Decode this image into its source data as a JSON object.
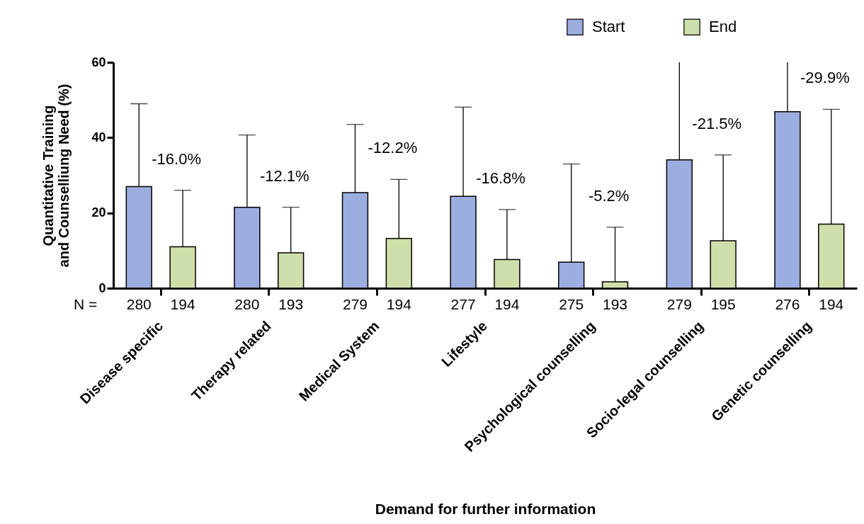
{
  "chart_data": {
    "type": "bar",
    "xlabel": "Demand for further information",
    "ylabel": "Quantitative Training\nand Counselliung Need (%)",
    "categories": [
      "Disease specific",
      "Therapy related",
      "Medical System",
      "Lifestyle",
      "Psychological counselling",
      "Socio-legal counselling",
      "Genetic counselling"
    ],
    "series": [
      {
        "name": "Start",
        "color": "#9caee0",
        "values": [
          27.0,
          21.5,
          25.4,
          24.4,
          6.9,
          34.1,
          46.9
        ],
        "errors": [
          [
            27.0,
            49.0
          ],
          [
            21.5,
            40.7
          ],
          [
            25.4,
            43.5
          ],
          [
            24.4,
            48.1
          ],
          [
            6.9,
            33.0
          ],
          [
            34.1,
            60
          ],
          [
            46.9,
            60
          ]
        ]
      },
      {
        "name": "End",
        "color": "#cfdfab",
        "values": [
          11.0,
          9.4,
          13.2,
          7.6,
          1.7,
          12.6,
          17.0
        ],
        "errors": [
          [
            11.0,
            26.0
          ],
          [
            9.4,
            21.5
          ],
          [
            13.2,
            28.9
          ],
          [
            7.6,
            20.9
          ],
          [
            1.7,
            16.2
          ],
          [
            12.6,
            35.4
          ],
          [
            17.0,
            47.5
          ]
        ]
      }
    ],
    "ylim": [
      0,
      60
    ],
    "yticks": [
      0,
      20,
      40,
      60
    ],
    "legend": "top right",
    "annotations": [
      "-16.0%",
      "-12.1%",
      "-12.2%",
      "-16.8%",
      "-5.2%",
      "-21.5%",
      "-29.9%",
      "N =",
      "280",
      "194",
      "280",
      "193",
      "279",
      "194",
      "277",
      "194",
      "275",
      "193",
      "279",
      "195",
      "276",
      "194"
    ]
  }
}
